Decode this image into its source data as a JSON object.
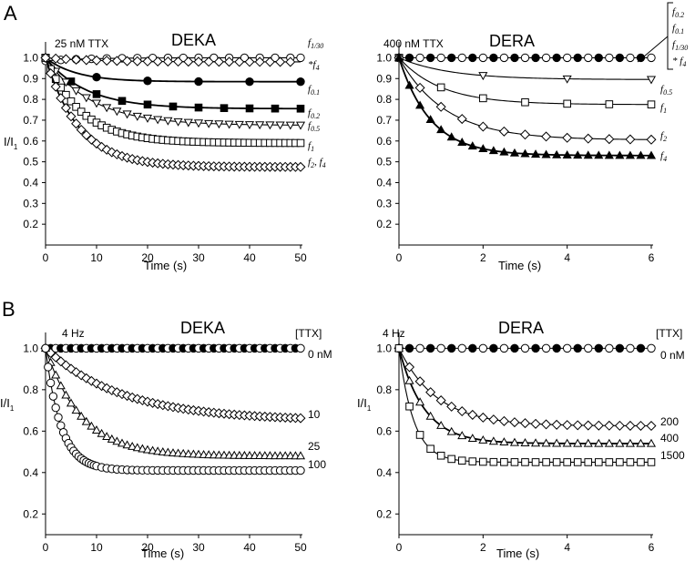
{
  "panels": [
    {
      "letter": "A"
    },
    {
      "letter": "B"
    }
  ],
  "chart_data": [
    {
      "type": "scatter",
      "panel": "A",
      "title": "DEKA",
      "condition": "25 nM TTX",
      "xlabel": "Time (s)",
      "ylabel": "I/I1",
      "xlim": [
        0,
        50
      ],
      "ylim": [
        0.1,
        1.05
      ],
      "xticks": [
        0,
        10,
        20,
        30,
        40,
        50
      ],
      "yticks": [
        0.2,
        0.3,
        0.4,
        0.5,
        0.6,
        0.7,
        0.8,
        0.9,
        1.0
      ],
      "legend_title": "",
      "series": [
        {
          "name": "f1/30",
          "label_base": "f",
          "label_sub": "1/30",
          "label_prefix": "",
          "marker": "open-circle",
          "fit": {
            "A": -0.015,
            "tau": 8,
            "C": 1.0
          },
          "x": [
            0,
            3,
            6,
            9,
            12,
            15,
            18,
            21,
            24,
            27,
            30,
            33,
            36,
            39,
            42,
            45,
            48,
            50
          ]
        },
        {
          "name": "*f4",
          "label_base": "f",
          "label_sub": "4",
          "label_prefix": "*",
          "marker": "open-diamond",
          "fit": {
            "A": 0.02,
            "tau": 10,
            "C": 0.98
          },
          "x": [
            0,
            2,
            4,
            6,
            8,
            10,
            12,
            14,
            16,
            18,
            20,
            22,
            24,
            26,
            28,
            30,
            32,
            34,
            36,
            38,
            40,
            42,
            44,
            46,
            48
          ]
        },
        {
          "name": "f0.1",
          "label_base": "f",
          "label_sub": "0.1",
          "label_prefix": "",
          "marker": "filled-circle",
          "fit": {
            "A": 0.115,
            "tau": 6,
            "C": 0.885
          },
          "x": [
            0,
            10,
            20,
            30,
            40,
            50
          ]
        },
        {
          "name": "f0.2",
          "label_base": "f",
          "label_sub": "0.2",
          "label_prefix": "",
          "marker": "filled-square",
          "fit": {
            "A": 0.245,
            "tau": 8,
            "C": 0.755
          },
          "x": [
            0,
            5,
            10,
            15,
            20,
            25,
            30,
            35,
            40,
            45,
            50
          ]
        },
        {
          "name": "f0.5",
          "label_base": "f",
          "label_sub": "0.5",
          "label_prefix": "",
          "marker": "open-triangle-down",
          "fit": {
            "A": 0.325,
            "tau": 9,
            "C": 0.675
          },
          "x": [
            0,
            2,
            4,
            6,
            8,
            10,
            12,
            14,
            16,
            18,
            20,
            22,
            24,
            26,
            28,
            30,
            32,
            34,
            36,
            38,
            40,
            42,
            44,
            46,
            48,
            50
          ]
        },
        {
          "name": "f1",
          "label_base": "f",
          "label_sub": "1",
          "label_prefix": "",
          "marker": "open-square",
          "fit": {
            "A": 0.41,
            "tau": 7,
            "C": 0.59
          },
          "x": [
            0,
            1,
            2,
            3,
            4,
            5,
            6,
            7,
            8,
            9,
            10,
            11,
            12,
            13,
            14,
            15,
            16,
            17,
            18,
            19,
            20,
            21,
            22,
            23,
            24,
            25,
            26,
            27,
            28,
            29,
            30,
            31,
            32,
            33,
            34,
            35,
            36,
            37,
            38,
            39,
            40,
            41,
            42,
            43,
            44,
            45,
            46,
            47,
            48,
            49,
            50
          ]
        },
        {
          "name": "f2, f4",
          "label_base": "f",
          "label_sub": "2",
          "label_prefix": "",
          "label_extra_base": "f",
          "label_extra_sub": "4",
          "marker": "open-diamond",
          "fit": {
            "A": 0.525,
            "tau": 6.5,
            "C": 0.475
          },
          "x": [
            0,
            1,
            2,
            3,
            4,
            5,
            6,
            7,
            8,
            9,
            10,
            11,
            12,
            13,
            14,
            15,
            16,
            17,
            18,
            19,
            20,
            21,
            22,
            23,
            24,
            25,
            26,
            27,
            28,
            29,
            30,
            31,
            32,
            33,
            34,
            35,
            36,
            37,
            38,
            39,
            40,
            41,
            42,
            43,
            44,
            45,
            46,
            47,
            48,
            49,
            50
          ]
        }
      ]
    },
    {
      "type": "scatter",
      "panel": "A",
      "title": "DERA",
      "condition": "400 nM TTX",
      "xlabel": "Time (s)",
      "ylabel": "I/I1",
      "xlim": [
        0,
        6
      ],
      "ylim": [
        0.1,
        1.05
      ],
      "xticks": [
        0,
        2,
        4,
        6
      ],
      "yticks": [
        0.2,
        0.3,
        0.4,
        0.5,
        0.6,
        0.7,
        0.8,
        0.9,
        1.0
      ],
      "legend_title": "",
      "bracket_labels": [
        {
          "base": "f",
          "sub": "0.2",
          "prefix": ""
        },
        {
          "base": "f",
          "sub": "0.1",
          "prefix": ""
        },
        {
          "base": "f",
          "sub": "1/30",
          "prefix": ""
        },
        {
          "base": "f",
          "sub": "4",
          "prefix": "* "
        }
      ],
      "series": [
        {
          "name": "f0.2, f0.1, f1/30, *f4",
          "label_base": "",
          "label_sub": "",
          "label_prefix": "",
          "marker": "mixed",
          "fit": {
            "A": 0,
            "tau": 1,
            "C": 1.0
          },
          "x": [
            0,
            0.25,
            0.5,
            0.75,
            1,
            1.25,
            1.5,
            1.75,
            2,
            2.25,
            2.5,
            2.75,
            3,
            3.25,
            3.5,
            3.75,
            4,
            4.25,
            4.5,
            4.75,
            5,
            5.25,
            5.5,
            5.75,
            6
          ]
        },
        {
          "name": "f0.5",
          "label_base": "f",
          "label_sub": "0.5",
          "label_prefix": "",
          "marker": "open-triangle-down",
          "fit": {
            "A": 0.105,
            "tau": 1.2,
            "C": 0.895
          },
          "x": [
            0,
            2,
            4,
            6
          ]
        },
        {
          "name": "f1",
          "label_base": "f",
          "label_sub": "1",
          "label_prefix": "",
          "marker": "open-square",
          "fit": {
            "A": 0.225,
            "tau": 1.0,
            "C": 0.775
          },
          "x": [
            0,
            1,
            2,
            3,
            4,
            5,
            6
          ]
        },
        {
          "name": "f2",
          "label_base": "f",
          "label_sub": "2",
          "label_prefix": "",
          "marker": "open-diamond",
          "fit": {
            "A": 0.395,
            "tau": 1.1,
            "C": 0.605
          },
          "x": [
            0,
            0.5,
            1,
            1.5,
            2,
            2.5,
            3,
            3.5,
            4,
            4.5,
            5,
            5.5,
            6
          ]
        },
        {
          "name": "f4",
          "label_base": "f",
          "label_sub": "4",
          "label_prefix": "",
          "marker": "filled-triangle-up",
          "fit": {
            "A": 0.47,
            "tau": 0.75,
            "C": 0.53
          },
          "x": [
            0,
            0.25,
            0.5,
            0.75,
            1,
            1.25,
            1.5,
            1.75,
            2,
            2.25,
            2.5,
            2.75,
            3,
            3.25,
            3.5,
            3.75,
            4,
            4.25,
            4.5,
            4.75,
            5,
            5.25,
            5.5,
            5.75,
            6
          ]
        }
      ]
    },
    {
      "type": "scatter",
      "panel": "B",
      "title": "DEKA",
      "condition": "4 Hz",
      "xlabel": "Time (s)",
      "ylabel": "I/I1",
      "xlim": [
        0,
        50
      ],
      "ylim": [
        0.1,
        1.05
      ],
      "xticks": [
        0,
        10,
        20,
        30,
        40,
        50
      ],
      "yticks": [
        0.2,
        0.4,
        0.6,
        0.8,
        1.0
      ],
      "legend_title": "[TTX]",
      "series": [
        {
          "name": "0 nM",
          "label_base": "0 nM",
          "label_sub": "",
          "label_prefix": "",
          "marker": "mixed",
          "fit": {
            "A": 0,
            "tau": 1,
            "C": 1.0
          },
          "x": [
            0,
            1,
            2,
            3,
            4,
            5,
            6,
            7,
            8,
            9,
            10,
            11,
            12,
            13,
            14,
            15,
            16,
            17,
            18,
            19,
            20,
            21,
            22,
            23,
            24,
            25,
            26,
            27,
            28,
            29,
            30,
            31,
            32,
            33,
            34,
            35,
            36,
            37,
            38,
            39,
            40,
            41,
            42,
            43,
            44,
            45,
            46,
            47,
            48,
            49,
            50
          ]
        },
        {
          "name": "10",
          "label_base": "10",
          "label_sub": "",
          "label_prefix": "",
          "marker": "open-diamond",
          "fit": {
            "A": 0.35,
            "tau": 15,
            "C": 0.65
          },
          "x": [
            0,
            1,
            2,
            3,
            4,
            5,
            6,
            7,
            8,
            9,
            10,
            11,
            12,
            13,
            14,
            15,
            16,
            17,
            18,
            19,
            20,
            21,
            22,
            23,
            24,
            25,
            26,
            27,
            28,
            29,
            30,
            31,
            32,
            33,
            34,
            35,
            36,
            37,
            38,
            39,
            40,
            41,
            42,
            43,
            44,
            45,
            46,
            47,
            48,
            49,
            50
          ]
        },
        {
          "name": "25",
          "label_base": "25",
          "label_sub": "",
          "label_prefix": "",
          "marker": "open-triangle-up",
          "fit": {
            "A": 0.52,
            "tau": 7,
            "C": 0.48
          },
          "x": [
            0,
            1,
            2,
            3,
            4,
            5,
            6,
            7,
            8,
            9,
            10,
            11,
            12,
            13,
            14,
            15,
            16,
            17,
            18,
            19,
            20,
            21,
            22,
            23,
            24,
            25,
            26,
            27,
            28,
            29,
            30,
            31,
            32,
            33,
            34,
            35,
            36,
            37,
            38,
            39,
            40,
            41,
            42,
            43,
            44,
            45,
            46,
            47,
            48,
            49,
            50
          ]
        },
        {
          "name": "100",
          "label_base": "100",
          "label_sub": "",
          "label_prefix": "",
          "marker": "open-circle",
          "fit": {
            "A": 0.59,
            "tau": 3,
            "C": 0.41
          },
          "x": [
            0,
            0.5,
            1,
            1.5,
            2,
            2.5,
            3,
            3.5,
            4,
            4.5,
            5,
            5.5,
            6,
            6.5,
            7,
            7.5,
            8,
            8.5,
            9,
            9.5,
            10,
            11,
            12,
            13,
            14,
            15,
            16,
            17,
            18,
            19,
            20,
            21,
            22,
            23,
            24,
            25,
            26,
            27,
            28,
            29,
            30,
            31,
            32,
            33,
            34,
            35,
            36,
            37,
            38,
            39,
            40,
            41,
            42,
            43,
            44,
            45,
            46,
            47,
            48,
            49,
            50
          ]
        }
      ]
    },
    {
      "type": "scatter",
      "panel": "B",
      "title": "DERA",
      "condition": "4 Hz",
      "xlabel": "Time (s)",
      "ylabel": "I/I1",
      "xlim": [
        0,
        6
      ],
      "ylim": [
        0.1,
        1.05
      ],
      "xticks": [
        0,
        2,
        4,
        6
      ],
      "yticks": [
        0.2,
        0.4,
        0.6,
        0.8,
        1.0
      ],
      "legend_title": "[TTX]",
      "series": [
        {
          "name": "0 nM",
          "label_base": "0 nM",
          "label_sub": "",
          "label_prefix": "",
          "marker": "mixed",
          "fit": {
            "A": 0,
            "tau": 1,
            "C": 1.0
          },
          "x": [
            0,
            0.25,
            0.5,
            0.75,
            1,
            1.25,
            1.5,
            1.75,
            2,
            2.25,
            2.5,
            2.75,
            3,
            3.25,
            3.5,
            3.75,
            4,
            4.25,
            4.5,
            4.75,
            5,
            5.25,
            5.5,
            5.75,
            6
          ]
        },
        {
          "name": "200",
          "label_base": "200",
          "label_sub": "",
          "label_prefix": "",
          "marker": "open-diamond",
          "fit": {
            "A": 0.375,
            "tau": 0.9,
            "C": 0.625
          },
          "x": [
            0,
            0.25,
            0.5,
            0.75,
            1,
            1.25,
            1.5,
            1.75,
            2,
            2.25,
            2.5,
            2.75,
            3,
            3.25,
            3.5,
            3.75,
            4,
            4.25,
            4.5,
            4.75,
            5,
            5.25,
            5.5,
            5.75,
            6
          ]
        },
        {
          "name": "400",
          "label_base": "400",
          "label_sub": "",
          "label_prefix": "",
          "marker": "open-triangle-up",
          "fit": {
            "A": 0.46,
            "tau": 0.6,
            "C": 0.54
          },
          "x": [
            0,
            0.25,
            0.5,
            0.75,
            1,
            1.25,
            1.5,
            1.75,
            2,
            2.25,
            2.5,
            2.75,
            3,
            3.25,
            3.5,
            3.75,
            4,
            4.25,
            4.5,
            4.75,
            5,
            5.25,
            5.5,
            5.75,
            6
          ]
        },
        {
          "name": "1500",
          "label_base": "1500",
          "label_sub": "",
          "label_prefix": "",
          "marker": "open-square",
          "fit": {
            "A": 0.55,
            "tau": 0.35,
            "C": 0.45
          },
          "x": [
            0,
            0.25,
            0.5,
            0.75,
            1,
            1.25,
            1.5,
            1.75,
            2,
            2.25,
            2.5,
            2.75,
            3,
            3.25,
            3.5,
            3.75,
            4,
            4.25,
            4.5,
            4.75,
            5,
            5.25,
            5.5,
            5.75,
            6
          ]
        }
      ]
    }
  ]
}
